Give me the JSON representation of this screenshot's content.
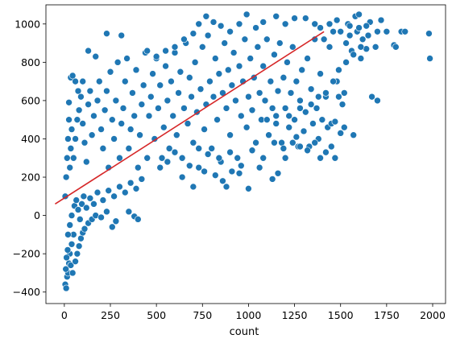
{
  "chart_data": {
    "type": "scatter",
    "title": "",
    "xlabel": "count",
    "ylabel": "",
    "xlim": [
      -100,
      2070
    ],
    "ylim": [
      -460,
      1100
    ],
    "xticks": [
      0,
      250,
      500,
      750,
      1000,
      1250,
      1500,
      1750,
      2000
    ],
    "yticks": [
      -400,
      -200,
      0,
      200,
      400,
      600,
      800,
      1000
    ],
    "xtick_labels": [
      "0",
      "250",
      "500",
      "750",
      "1000",
      "1250",
      "1500",
      "1750",
      "2000"
    ],
    "ytick_labels": [
      "−400",
      "−200",
      "0",
      "200",
      "400",
      "600",
      "800",
      "1000"
    ],
    "grid": false,
    "series": [
      {
        "kind": "scatter",
        "color": "#1f77b4",
        "edge_color": "#ffffff",
        "points": [
          [
            5,
            -360
          ],
          [
            10,
            -380
          ],
          [
            15,
            -320
          ],
          [
            20,
            -300
          ],
          [
            25,
            -250
          ],
          [
            30,
            -200
          ],
          [
            40,
            -150
          ],
          [
            50,
            -100
          ],
          [
            8,
            -280
          ],
          [
            12,
            -220
          ],
          [
            18,
            -180
          ],
          [
            35,
            -260
          ],
          [
            45,
            -300
          ],
          [
            60,
            -240
          ],
          [
            70,
            -200
          ],
          [
            80,
            -160
          ],
          [
            90,
            -120
          ],
          [
            100,
            -90
          ],
          [
            110,
            -70
          ],
          [
            130,
            -40
          ],
          [
            150,
            -20
          ],
          [
            170,
            0
          ],
          [
            200,
            -10
          ],
          [
            230,
            20
          ],
          [
            260,
            -60
          ],
          [
            280,
            -30
          ],
          [
            350,
            20
          ],
          [
            380,
            -5
          ],
          [
            400,
            -20
          ],
          [
            20,
            -100
          ],
          [
            30,
            -50
          ],
          [
            40,
            0
          ],
          [
            55,
            50
          ],
          [
            65,
            80
          ],
          [
            75,
            30
          ],
          [
            85,
            -20
          ],
          [
            95,
            60
          ],
          [
            105,
            100
          ],
          [
            120,
            40
          ],
          [
            140,
            90
          ],
          [
            160,
            60
          ],
          [
            180,
            120
          ],
          [
            210,
            80
          ],
          [
            240,
            130
          ],
          [
            270,
            100
          ],
          [
            300,
            150
          ],
          [
            330,
            120
          ],
          [
            360,
            170
          ],
          [
            390,
            140
          ],
          [
            420,
            190
          ],
          [
            5,
            100
          ],
          [
            10,
            200
          ],
          [
            15,
            300
          ],
          [
            20,
            400
          ],
          [
            25,
            500
          ],
          [
            30,
            250
          ],
          [
            35,
            350
          ],
          [
            40,
            450
          ],
          [
            50,
            300
          ],
          [
            60,
            400
          ],
          [
            70,
            500
          ],
          [
            80,
            550
          ],
          [
            90,
            620
          ],
          [
            100,
            480
          ],
          [
            110,
            380
          ],
          [
            120,
            280
          ],
          [
            130,
            580
          ],
          [
            140,
            650
          ],
          [
            150,
            420
          ],
          [
            160,
            520
          ],
          [
            25,
            590
          ],
          [
            35,
            720
          ],
          [
            45,
            730
          ],
          [
            60,
            700
          ],
          [
            75,
            650
          ],
          [
            100,
            700
          ],
          [
            130,
            860
          ],
          [
            170,
            830
          ],
          [
            230,
            950
          ],
          [
            310,
            940
          ],
          [
            180,
            600
          ],
          [
            190,
            700
          ],
          [
            200,
            450
          ],
          [
            210,
            350
          ],
          [
            220,
            550
          ],
          [
            230,
            650
          ],
          [
            240,
            250
          ],
          [
            250,
            750
          ],
          [
            260,
            500
          ],
          [
            270,
            400
          ],
          [
            280,
            600
          ],
          [
            290,
            800
          ],
          [
            300,
            300
          ],
          [
            310,
            480
          ],
          [
            320,
            560
          ],
          [
            330,
            700
          ],
          [
            340,
            820
          ],
          [
            350,
            350
          ],
          [
            360,
            450
          ],
          [
            370,
            640
          ],
          [
            380,
            520
          ],
          [
            390,
            760
          ],
          [
            400,
            250
          ],
          [
            410,
            420
          ],
          [
            420,
            580
          ],
          [
            430,
            680
          ],
          [
            440,
            850
          ],
          [
            450,
            300
          ],
          [
            460,
            520
          ],
          [
            470,
            620
          ],
          [
            480,
            740
          ],
          [
            490,
            400
          ],
          [
            500,
            820
          ],
          [
            510,
            560
          ],
          [
            520,
            680
          ],
          [
            530,
            300
          ],
          [
            540,
            460
          ],
          [
            550,
            780
          ],
          [
            560,
            600
          ],
          [
            570,
            350
          ],
          [
            580,
            700
          ],
          [
            590,
            520
          ],
          [
            600,
            850
          ],
          [
            610,
            420
          ],
          [
            620,
            640
          ],
          [
            630,
            750
          ],
          [
            640,
            300
          ],
          [
            650,
            560
          ],
          [
            660,
            900
          ],
          [
            670,
            480
          ],
          [
            680,
            720
          ],
          [
            690,
            620
          ],
          [
            700,
            380
          ],
          [
            710,
            800
          ],
          [
            720,
            540
          ],
          [
            730,
            250
          ],
          [
            740,
            660
          ],
          [
            750,
            880
          ],
          [
            760,
            450
          ],
          [
            770,
            580
          ],
          [
            780,
            940
          ],
          [
            790,
            700
          ],
          [
            800,
            350
          ],
          [
            810,
            620
          ],
          [
            820,
            820
          ],
          [
            830,
            500
          ],
          [
            840,
            740
          ],
          [
            850,
            280
          ],
          [
            860,
            640
          ],
          [
            870,
            900
          ],
          [
            880,
            560
          ],
          [
            890,
            760
          ],
          [
            900,
            420
          ],
          [
            910,
            680
          ],
          [
            920,
            850
          ],
          [
            930,
            600
          ],
          [
            940,
            300
          ],
          [
            950,
            780
          ],
          [
            960,
            520
          ],
          [
            970,
            700
          ],
          [
            980,
            920
          ],
          [
            990,
            460
          ],
          [
            1000,
            620
          ],
          [
            1010,
            820
          ],
          [
            1020,
            550
          ],
          [
            1030,
            720
          ],
          [
            1040,
            380
          ],
          [
            1050,
            880
          ],
          [
            1060,
            640
          ],
          [
            1070,
            500
          ],
          [
            1080,
            780
          ],
          [
            1090,
            600
          ],
          [
            1100,
            920
          ],
          [
            1110,
            420
          ],
          [
            1120,
            700
          ],
          [
            1130,
            560
          ],
          [
            1140,
            840
          ],
          [
            1150,
            480
          ],
          [
            1160,
            650
          ],
          [
            1170,
            900
          ],
          [
            1180,
            380
          ],
          [
            1190,
            720
          ],
          [
            1200,
            560
          ],
          [
            1210,
            800
          ],
          [
            1220,
            460
          ],
          [
            1230,
            640
          ],
          [
            1240,
            880
          ],
          [
            1250,
            500
          ],
          [
            1260,
            700
          ],
          [
            1270,
            360
          ],
          [
            1280,
            600
          ],
          [
            1290,
            760
          ],
          [
            1300,
            440
          ],
          [
            1310,
            540
          ],
          [
            1320,
            820
          ],
          [
            1330,
            360
          ],
          [
            1340,
            660
          ],
          [
            1350,
            480
          ],
          [
            1360,
            920
          ],
          [
            1370,
            560
          ],
          [
            1380,
            400
          ],
          [
            1390,
            740
          ],
          [
            1400,
            500
          ],
          [
            1410,
            920
          ],
          [
            1420,
            620
          ],
          [
            1430,
            460
          ],
          [
            1440,
            880
          ],
          [
            1450,
            360
          ],
          [
            1460,
            960
          ],
          [
            1470,
            300
          ],
          [
            1480,
            700
          ],
          [
            1490,
            620
          ],
          [
            1500,
            960
          ],
          [
            1510,
            580
          ],
          [
            1520,
            460
          ],
          [
            1530,
            900
          ],
          [
            1540,
            1000
          ],
          [
            1550,
            940
          ],
          [
            1560,
            860
          ],
          [
            1570,
            420
          ],
          [
            1580,
            1040
          ],
          [
            1590,
            960
          ],
          [
            1600,
            1050
          ],
          [
            1610,
            820
          ],
          [
            1620,
            920
          ],
          [
            1640,
            870
          ],
          [
            1660,
            1010
          ],
          [
            1670,
            620
          ],
          [
            1690,
            880
          ],
          [
            1700,
            600
          ],
          [
            1720,
            1020
          ],
          [
            1750,
            960
          ],
          [
            1790,
            890
          ],
          [
            1800,
            880
          ],
          [
            1830,
            960
          ],
          [
            1850,
            960
          ],
          [
            1980,
            950
          ],
          [
            1985,
            820
          ],
          [
            1520,
            640
          ],
          [
            1500,
            430
          ],
          [
            1260,
            410
          ],
          [
            1280,
            360
          ],
          [
            1320,
            340
          ],
          [
            1360,
            380
          ],
          [
            1390,
            300
          ],
          [
            1420,
            330
          ],
          [
            1450,
            480
          ],
          [
            1470,
            490
          ],
          [
            1130,
            190
          ],
          [
            1000,
            140
          ],
          [
            880,
            150
          ],
          [
            910,
            230
          ],
          [
            950,
            220
          ],
          [
            1060,
            250
          ],
          [
            1160,
            220
          ],
          [
            1200,
            300
          ],
          [
            700,
            150
          ],
          [
            760,
            230
          ],
          [
            820,
            210
          ],
          [
            860,
            180
          ],
          [
            520,
            250
          ],
          [
            560,
            280
          ],
          [
            600,
            330
          ],
          [
            640,
            200
          ],
          [
            680,
            260
          ],
          [
            730,
            350
          ],
          [
            780,
            320
          ],
          [
            840,
            300
          ],
          [
            900,
            330
          ],
          [
            960,
            260
          ],
          [
            1020,
            340
          ],
          [
            1080,
            300
          ],
          [
            1140,
            380
          ],
          [
            1190,
            350
          ],
          [
            1240,
            380
          ],
          [
            1300,
            440
          ],
          [
            1100,
            500
          ],
          [
            1150,
            520
          ],
          [
            1220,
            520
          ],
          [
            1280,
            560
          ],
          [
            1340,
            580
          ],
          [
            1380,
            620
          ],
          [
            1420,
            640
          ],
          [
            1460,
            700
          ],
          [
            1490,
            760
          ],
          [
            1530,
            800
          ],
          [
            1570,
            840
          ],
          [
            1610,
            880
          ],
          [
            1650,
            940
          ],
          [
            1700,
            960
          ],
          [
            450,
            860
          ],
          [
            500,
            830
          ],
          [
            550,
            860
          ],
          [
            600,
            880
          ],
          [
            650,
            920
          ],
          [
            700,
            950
          ],
          [
            730,
            1000
          ],
          [
            770,
            1040
          ],
          [
            810,
            1010
          ],
          [
            850,
            990
          ],
          [
            900,
            960
          ],
          [
            950,
            1000
          ],
          [
            990,
            1050
          ],
          [
            1040,
            980
          ],
          [
            1080,
            1010
          ],
          [
            1150,
            1040
          ],
          [
            1200,
            1000
          ],
          [
            1250,
            1030
          ],
          [
            1310,
            1030
          ],
          [
            1360,
            1000
          ],
          [
            1390,
            980
          ],
          [
            1440,
            1000
          ],
          [
            1480,
            1020
          ],
          [
            1550,
            990
          ],
          [
            1600,
            980
          ],
          [
            1640,
            990
          ]
        ]
      },
      {
        "kind": "line",
        "color": "#d62728",
        "points": [
          [
            -50,
            60
          ],
          [
            1410,
            960
          ]
        ]
      }
    ]
  }
}
